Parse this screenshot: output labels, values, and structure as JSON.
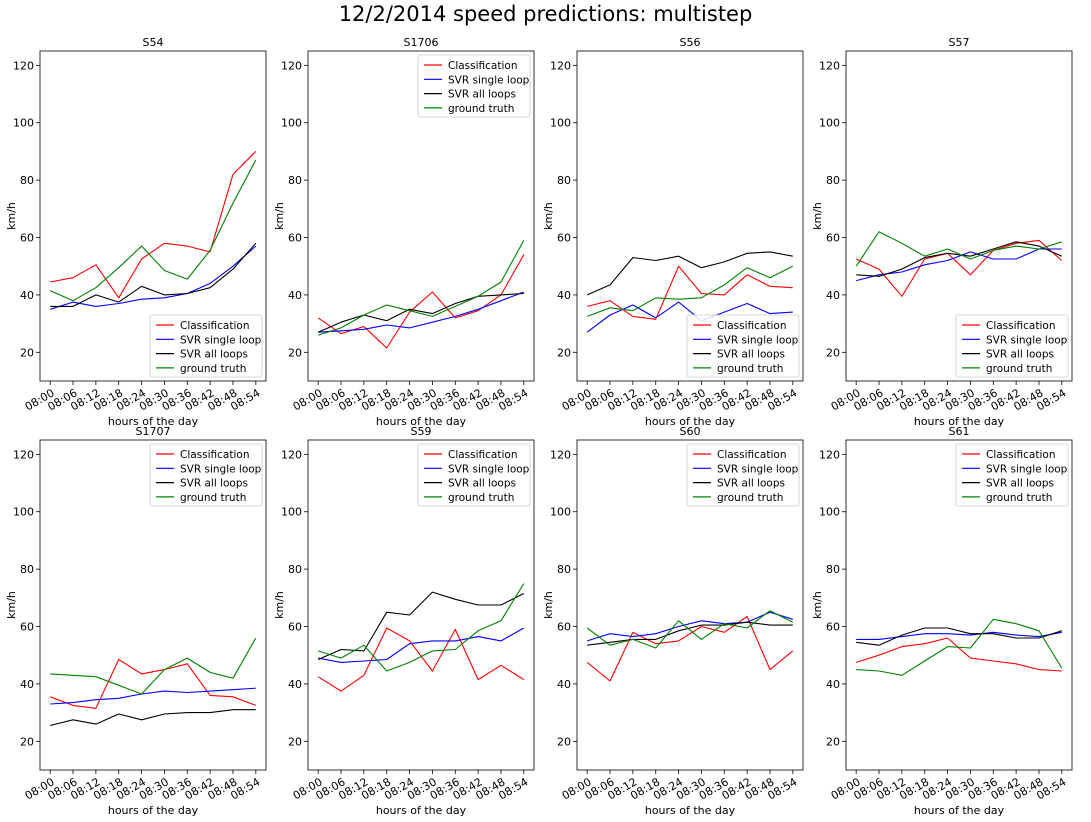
{
  "figure": {
    "suptitle": "12/2/2014 speed predictions: multistep"
  },
  "series_colors": {
    "Classification": "#ff0000",
    "SVR single loop": "#0000ff",
    "SVR all loops": "#000000",
    "ground truth": "#008000"
  },
  "chart_data": [
    {
      "type": "line",
      "title": "S54",
      "xlabel": "hours of the day",
      "ylabel": "km/h",
      "ylim": [
        10,
        125
      ],
      "yticks": [
        20,
        40,
        60,
        80,
        100,
        120
      ],
      "x": [
        "08:00",
        "08:06",
        "08:12",
        "08:18",
        "08:24",
        "08:30",
        "08:36",
        "08:42",
        "08:48",
        "08:54"
      ],
      "legend": "lower right",
      "series": [
        {
          "name": "Classification",
          "values": [
            44.5,
            46,
            50.5,
            39,
            52.5,
            58,
            57,
            55,
            82,
            90
          ]
        },
        {
          "name": "SVR single loop",
          "values": [
            35,
            37.5,
            36,
            37,
            38.5,
            39,
            40.5,
            44,
            50,
            57
          ]
        },
        {
          "name": "SVR all loops",
          "values": [
            36,
            36,
            40,
            37.5,
            43,
            40,
            40.5,
            42.5,
            49,
            58
          ]
        },
        {
          "name": "ground truth",
          "values": [
            41.5,
            38,
            42.5,
            49.5,
            57,
            48.5,
            45.5,
            55.5,
            72,
            87
          ]
        }
      ]
    },
    {
      "type": "line",
      "title": "S1706",
      "xlabel": "hours of the day",
      "ylabel": "km/h",
      "ylim": [
        10,
        125
      ],
      "yticks": [
        20,
        40,
        60,
        80,
        100,
        120
      ],
      "x": [
        "08:00",
        "08:06",
        "08:12",
        "08:18",
        "08:24",
        "08:30",
        "08:36",
        "08:42",
        "08:48",
        "08:54"
      ],
      "legend": "upper right",
      "series": [
        {
          "name": "Classification",
          "values": [
            32,
            26.5,
            29,
            21.5,
            34,
            41,
            32,
            34.5,
            40,
            54
          ]
        },
        {
          "name": "SVR single loop",
          "values": [
            27,
            27.5,
            28,
            29.5,
            28.5,
            30.5,
            32.5,
            35,
            38,
            41
          ]
        },
        {
          "name": "SVR all loops",
          "values": [
            27,
            30.5,
            33,
            31,
            35,
            33.5,
            37,
            39.5,
            40,
            40.5
          ]
        },
        {
          "name": "ground truth",
          "values": [
            26,
            28.5,
            33,
            36.5,
            34.5,
            32.5,
            36,
            39.5,
            44.5,
            59
          ]
        }
      ]
    },
    {
      "type": "line",
      "title": "S56",
      "xlabel": "hours of the day",
      "ylabel": "km/h",
      "ylim": [
        10,
        125
      ],
      "yticks": [
        20,
        40,
        60,
        80,
        100,
        120
      ],
      "x": [
        "08:00",
        "08:06",
        "08:12",
        "08:18",
        "08:24",
        "08:30",
        "08:36",
        "08:42",
        "08:48",
        "08:54"
      ],
      "legend": "lower right",
      "series": [
        {
          "name": "Classification",
          "values": [
            36,
            38,
            32.5,
            31.5,
            50,
            40.5,
            40,
            47,
            43,
            42.5
          ]
        },
        {
          "name": "SVR single loop",
          "values": [
            27,
            33,
            36.5,
            32,
            37.5,
            31,
            34,
            37,
            33.5,
            34
          ]
        },
        {
          "name": "SVR all loops",
          "values": [
            40,
            43.5,
            53,
            52,
            53.5,
            49.5,
            51.5,
            54.5,
            55,
            53.5
          ]
        },
        {
          "name": "ground truth",
          "values": [
            32.5,
            35.5,
            34.5,
            39,
            38.5,
            39,
            43.5,
            49.5,
            46,
            50
          ]
        }
      ]
    },
    {
      "type": "line",
      "title": "S57",
      "xlabel": "hours of the day",
      "ylabel": "km/h",
      "ylim": [
        10,
        125
      ],
      "yticks": [
        20,
        40,
        60,
        80,
        100,
        120
      ],
      "x": [
        "08:00",
        "08:06",
        "08:12",
        "08:18",
        "08:24",
        "08:30",
        "08:36",
        "08:42",
        "08:48",
        "08:54"
      ],
      "legend": "lower right",
      "series": [
        {
          "name": "Classification",
          "values": [
            52.5,
            49,
            39.5,
            52.5,
            54.5,
            47,
            55.5,
            58,
            59,
            52
          ]
        },
        {
          "name": "SVR single loop",
          "values": [
            45,
            47,
            48,
            50.5,
            52,
            55,
            52.5,
            52.5,
            56,
            56
          ]
        },
        {
          "name": "SVR all loops",
          "values": [
            47,
            46.5,
            49,
            53,
            54.5,
            53.5,
            56,
            58.5,
            57,
            53.5
          ]
        },
        {
          "name": "ground truth",
          "values": [
            50,
            62,
            58,
            53.5,
            56,
            52.5,
            55.5,
            57,
            56,
            58.5
          ]
        }
      ]
    },
    {
      "type": "line",
      "title": "S1707",
      "xlabel": "hours of the day",
      "ylabel": "km/h",
      "ylim": [
        10,
        125
      ],
      "yticks": [
        20,
        40,
        60,
        80,
        100,
        120
      ],
      "x": [
        "08:00",
        "08:06",
        "08:12",
        "08:18",
        "08:24",
        "08:30",
        "08:36",
        "08:42",
        "08:48",
        "08:54"
      ],
      "legend": "upper right",
      "series": [
        {
          "name": "Classification",
          "values": [
            35.5,
            32.5,
            31.5,
            48.5,
            43.5,
            45,
            47,
            36,
            35.5,
            32.5
          ]
        },
        {
          "name": "SVR single loop",
          "values": [
            33,
            33.5,
            34.5,
            35,
            36.5,
            37.5,
            37,
            37.5,
            38,
            38.5
          ]
        },
        {
          "name": "SVR all loops",
          "values": [
            25.5,
            27.5,
            26,
            29.5,
            27.5,
            29.5,
            30,
            30,
            31,
            31
          ]
        },
        {
          "name": "ground truth",
          "values": [
            43.5,
            43,
            42.5,
            39.5,
            36.5,
            45,
            49,
            44,
            42,
            56
          ]
        }
      ]
    },
    {
      "type": "line",
      "title": "S59",
      "xlabel": "hours of the day",
      "ylabel": "km/h",
      "ylim": [
        10,
        125
      ],
      "yticks": [
        20,
        40,
        60,
        80,
        100,
        120
      ],
      "x": [
        "08:00",
        "08:06",
        "08:12",
        "08:18",
        "08:24",
        "08:30",
        "08:36",
        "08:42",
        "08:48",
        "08:54"
      ],
      "legend": "upper right",
      "series": [
        {
          "name": "Classification",
          "values": [
            42.5,
            37.5,
            43,
            59.5,
            55,
            44.5,
            59,
            41.5,
            46.5,
            41.5
          ]
        },
        {
          "name": "SVR single loop",
          "values": [
            49,
            47.5,
            48,
            48.5,
            54,
            55,
            55,
            56.5,
            55,
            59.5
          ]
        },
        {
          "name": "SVR all loops",
          "values": [
            48.5,
            52,
            51.5,
            65,
            64,
            72,
            69.5,
            67.5,
            67.5,
            71.5
          ]
        },
        {
          "name": "ground truth",
          "values": [
            51.5,
            49,
            53.5,
            44.5,
            47.5,
            51.5,
            52,
            58.5,
            62,
            75
          ]
        }
      ]
    },
    {
      "type": "line",
      "title": "S60",
      "xlabel": "hours of the day",
      "ylabel": "km/h",
      "ylim": [
        10,
        125
      ],
      "yticks": [
        20,
        40,
        60,
        80,
        100,
        120
      ],
      "x": [
        "08:00",
        "08:06",
        "08:12",
        "08:18",
        "08:24",
        "08:30",
        "08:36",
        "08:42",
        "08:48",
        "08:54"
      ],
      "legend": "upper right",
      "series": [
        {
          "name": "Classification",
          "values": [
            47.5,
            41,
            58,
            54,
            55,
            60,
            58,
            63.5,
            45,
            51.5
          ]
        },
        {
          "name": "SVR single loop",
          "values": [
            55,
            57.5,
            56.5,
            57.5,
            60,
            62,
            61,
            61.5,
            65,
            62.5
          ]
        },
        {
          "name": "SVR all loops",
          "values": [
            53.5,
            54.5,
            55.5,
            55.5,
            58.5,
            60.5,
            60.5,
            61.5,
            60.5,
            60.5
          ]
        },
        {
          "name": "ground truth",
          "values": [
            59.5,
            53.5,
            55.5,
            52.5,
            62,
            55.5,
            61,
            59.5,
            65.5,
            61.5
          ]
        }
      ]
    },
    {
      "type": "line",
      "title": "S61",
      "xlabel": "hours of the day",
      "ylabel": "km/h",
      "ylim": [
        10,
        125
      ],
      "yticks": [
        20,
        40,
        60,
        80,
        100,
        120
      ],
      "x": [
        "08:00",
        "08:06",
        "08:12",
        "08:18",
        "08:24",
        "08:30",
        "08:36",
        "08:42",
        "08:48",
        "08:54"
      ],
      "legend": "upper right",
      "series": [
        {
          "name": "Classification",
          "values": [
            47.5,
            50,
            53,
            54,
            56,
            49,
            48,
            47,
            45,
            44.5
          ]
        },
        {
          "name": "SVR single loop",
          "values": [
            55.5,
            55.5,
            56.5,
            57.5,
            57.5,
            57,
            58,
            57,
            56.5,
            58
          ]
        },
        {
          "name": "SVR all loops",
          "values": [
            54.5,
            53.5,
            57,
            59.5,
            59.5,
            57.5,
            57.5,
            56,
            56,
            58.5
          ]
        },
        {
          "name": "ground truth",
          "values": [
            45,
            44.5,
            43,
            48,
            53,
            52.5,
            62.5,
            61,
            58.5,
            45.5
          ]
        }
      ]
    }
  ]
}
